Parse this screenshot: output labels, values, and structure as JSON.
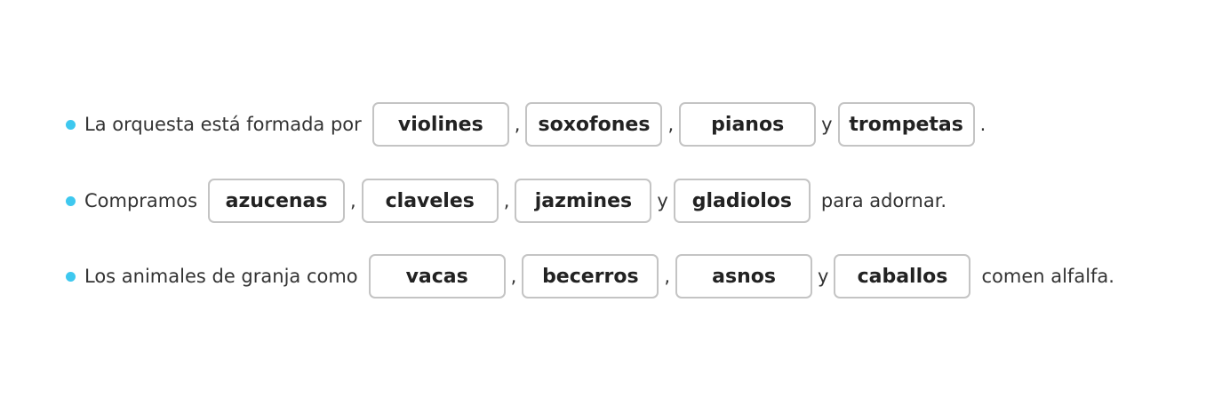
{
  "sentences": [
    {
      "before": "La orquesta está formada por",
      "blanks": [
        "violines",
        "soxofones",
        "pianos",
        "trompetas"
      ],
      "separators": [
        ",",
        ",",
        "y"
      ],
      "after": "."
    },
    {
      "before": "Compramos",
      "blanks": [
        "azucenas",
        "claveles",
        "jazmines",
        "gladiolos"
      ],
      "separators": [
        ",",
        ",",
        "y"
      ],
      "after": "para adornar."
    },
    {
      "before": "Los animales de granja como",
      "blanks": [
        "vacas",
        "becerros",
        "asnos",
        "caballos"
      ],
      "separators": [
        ",",
        ",",
        "y"
      ],
      "after": "comen alfalfa."
    }
  ],
  "colors": {
    "bullet": "#3ec8ef",
    "box_border": "#c4c4c4"
  }
}
